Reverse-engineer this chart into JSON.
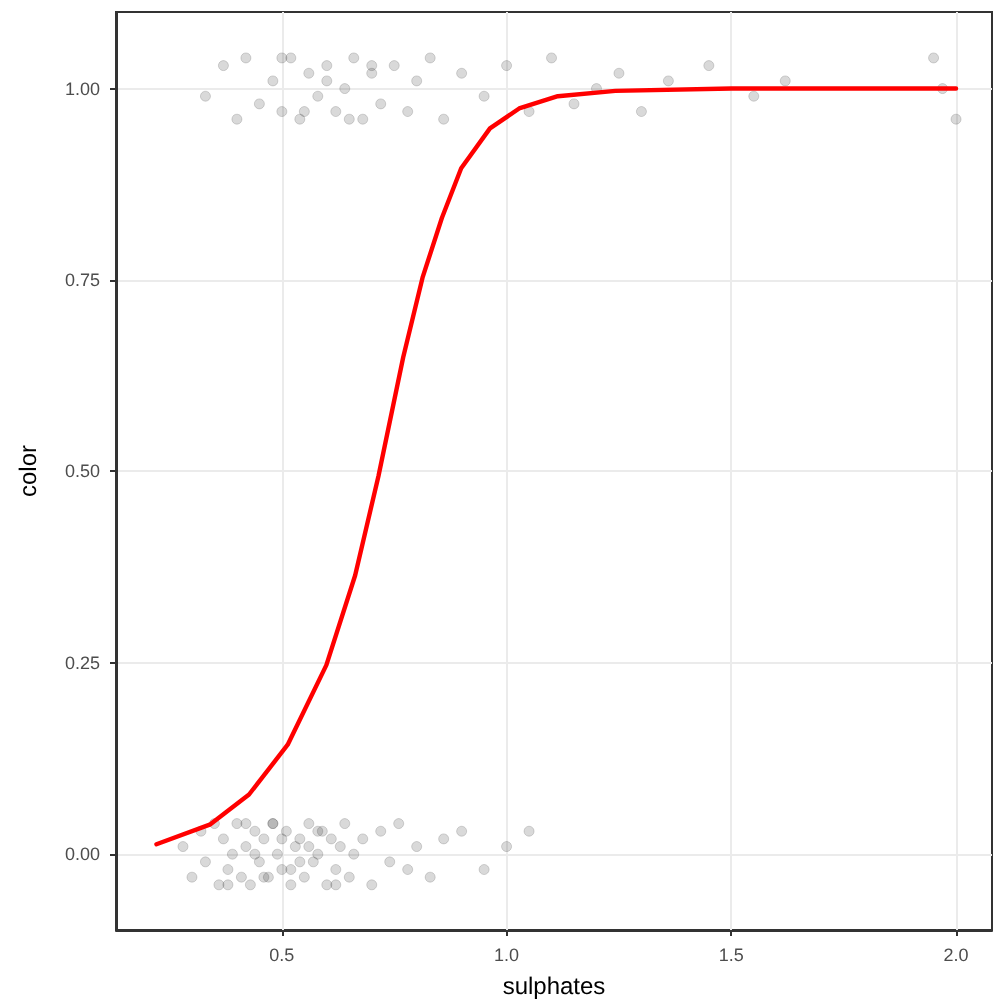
{
  "chart_data": {
    "type": "scatter",
    "xlabel": "sulphates",
    "ylabel": "color",
    "xlim": [
      0.131,
      2.08
    ],
    "ylim": [
      -0.099,
      1.1
    ],
    "xticks": [
      {
        "value": 0.5,
        "label": "0.5"
      },
      {
        "value": 1.0,
        "label": "1.0"
      },
      {
        "value": 1.5,
        "label": "1.5"
      },
      {
        "value": 2.0,
        "label": "2.0"
      }
    ],
    "yticks": [
      {
        "value": 0,
        "label": "0.00"
      },
      {
        "value": 0.25,
        "label": "0.25"
      },
      {
        "value": 0.5,
        "label": "0.50"
      },
      {
        "value": 0.75,
        "label": "0.75"
      },
      {
        "value": 1,
        "label": "1.00"
      }
    ],
    "grid": true,
    "marker": "circle",
    "series": [
      {
        "color": "#000000",
        "x": [
          0.28,
          0.3,
          0.32,
          0.33,
          0.35,
          0.36,
          0.37,
          0.38,
          0.39,
          0.4,
          0.41,
          0.42,
          0.43,
          0.44,
          0.45,
          0.46,
          0.47,
          0.48,
          0.49,
          0.5,
          0.51,
          0.52,
          0.53,
          0.54,
          0.55,
          0.56,
          0.57,
          0.58,
          0.59,
          0.6,
          0.61,
          0.62,
          0.63,
          0.64,
          0.65,
          0.66,
          0.68,
          0.7,
          0.72,
          0.74,
          0.76,
          0.78,
          0.8,
          0.83,
          0.86,
          0.9,
          0.95,
          1.0,
          1.05,
          0.38,
          0.42,
          0.46,
          0.5,
          0.54,
          0.58,
          0.62,
          0.44,
          0.48,
          0.52,
          0.56,
          0.33,
          0.37,
          0.4,
          0.42,
          0.45,
          0.48,
          0.5,
          0.52,
          0.54,
          0.56,
          0.58,
          0.6,
          0.62,
          0.64,
          0.66,
          0.68,
          0.7,
          0.72,
          0.75,
          0.78,
          0.8,
          0.83,
          0.86,
          0.9,
          0.95,
          1.0,
          1.05,
          1.1,
          1.15,
          1.2,
          1.25,
          1.3,
          1.36,
          1.45,
          1.55,
          1.62,
          1.95,
          1.97,
          2.0,
          0.5,
          0.55,
          0.6,
          0.65,
          0.7
        ],
        "values": [
          0.01,
          -0.03,
          0.03,
          -0.01,
          0.04,
          -0.04,
          0.02,
          -0.02,
          0.0,
          0.04,
          -0.03,
          0.01,
          -0.04,
          0.03,
          -0.01,
          0.02,
          -0.03,
          0.04,
          0.0,
          -0.02,
          0.03,
          -0.04,
          0.01,
          0.02,
          -0.03,
          0.04,
          -0.01,
          0.0,
          0.03,
          -0.04,
          0.02,
          -0.02,
          0.01,
          0.04,
          -0.03,
          0.0,
          0.02,
          -0.04,
          0.03,
          -0.01,
          0.04,
          -0.02,
          0.01,
          -0.03,
          0.02,
          0.03,
          -0.02,
          0.01,
          0.03,
          -0.04,
          0.04,
          -0.03,
          0.02,
          -0.01,
          0.03,
          -0.04,
          0.0,
          0.04,
          -0.02,
          0.01,
          0.99,
          1.03,
          0.96,
          1.04,
          0.98,
          1.01,
          0.97,
          1.04,
          0.96,
          1.02,
          0.99,
          1.03,
          0.97,
          1.0,
          1.04,
          0.96,
          1.02,
          0.98,
          1.03,
          0.97,
          1.01,
          1.04,
          0.96,
          1.02,
          0.99,
          1.03,
          0.97,
          1.04,
          0.98,
          1.0,
          1.02,
          0.97,
          1.01,
          1.03,
          0.99,
          1.01,
          1.04,
          1.0,
          0.96,
          1.04,
          0.97,
          1.01,
          0.96,
          1.03
        ]
      },
      {
        "type": "line",
        "color": "#ff0000",
        "marker": "none",
        "x": [
          0.221,
          0.341,
          0.427,
          0.513,
          0.599,
          0.663,
          0.715,
          0.77,
          0.813,
          0.856,
          0.899,
          0.963,
          1.028,
          1.114,
          1.242,
          1.5,
          2.0
        ],
        "values": [
          0.013,
          0.039,
          0.078,
          0.143,
          0.247,
          0.364,
          0.494,
          0.649,
          0.753,
          0.831,
          0.896,
          0.948,
          0.974,
          0.99,
          0.997,
          1.0,
          1.0
        ]
      }
    ]
  }
}
